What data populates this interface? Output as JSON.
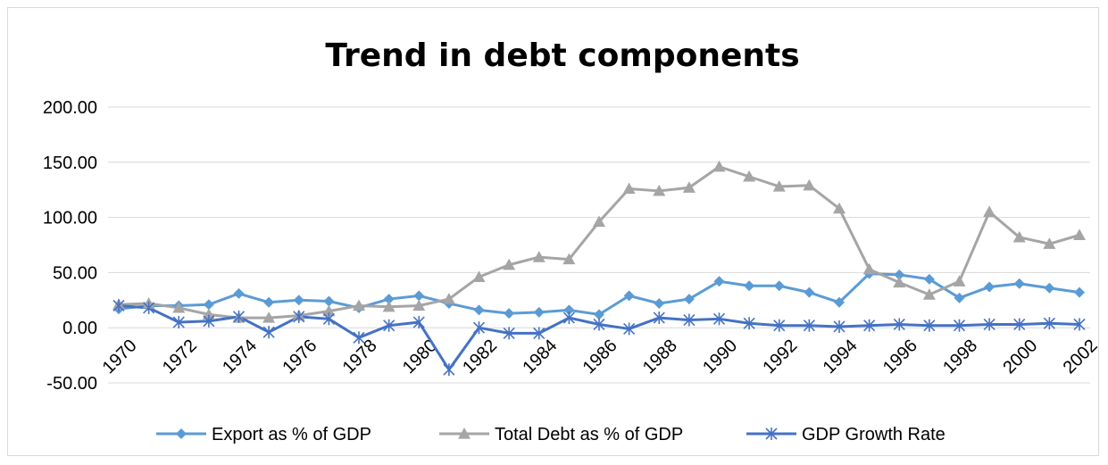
{
  "chart_data": {
    "type": "line",
    "title": "Trend in debt components",
    "xlabel": "",
    "ylabel": "",
    "ylim": [
      -50,
      200
    ],
    "yticks": [
      "200.00",
      "150.00",
      "100.00",
      "50.00",
      "0.00",
      "-50.00"
    ],
    "x": [
      1970,
      1971,
      1972,
      1973,
      1974,
      1975,
      1976,
      1977,
      1978,
      1979,
      1980,
      1981,
      1982,
      1983,
      1984,
      1985,
      1986,
      1987,
      1988,
      1989,
      1990,
      1991,
      1992,
      1993,
      1994,
      1995,
      1996,
      1997,
      1998,
      1999,
      2000,
      2001,
      2002
    ],
    "xticks": [
      "1970",
      "1972",
      "1974",
      "1976",
      "1978",
      "1980",
      "1982",
      "1984",
      "1986",
      "1988",
      "1990",
      "1992",
      "1994",
      "1996",
      "1998",
      "2000",
      "2002"
    ],
    "grid": true,
    "legend": "bottom",
    "series": [
      {
        "name": "Export as % of GDP",
        "color": "#5b9bd5",
        "marker": "diamond",
        "values": [
          17,
          20,
          20,
          21,
          31,
          23,
          25,
          24,
          18,
          26,
          29,
          22,
          16,
          13,
          14,
          16,
          12,
          29,
          22,
          26,
          42,
          38,
          38,
          32,
          23,
          49,
          48,
          44,
          27,
          37,
          40,
          36,
          32
        ]
      },
      {
        "name": "Total Debt as % of GDP",
        "color": "#a5a5a5",
        "marker": "triangle",
        "values": [
          21,
          22,
          18,
          12,
          9,
          9,
          11,
          15,
          20,
          19,
          20,
          26,
          46,
          57,
          64,
          62,
          96,
          126,
          124,
          127,
          146,
          137,
          128,
          129,
          108,
          53,
          41,
          30,
          42,
          105,
          82,
          76,
          84
        ]
      },
      {
        "name": "GDP Growth Rate",
        "color": "#4472c4",
        "marker": "star",
        "values": [
          20,
          18,
          5,
          6,
          10,
          -4,
          10,
          8,
          -9,
          2,
          5,
          -38,
          0,
          -5,
          -5,
          9,
          3,
          -1,
          9,
          7,
          8,
          4,
          2,
          2,
          1,
          2,
          3,
          2,
          2,
          3,
          3,
          4,
          3
        ]
      }
    ]
  }
}
